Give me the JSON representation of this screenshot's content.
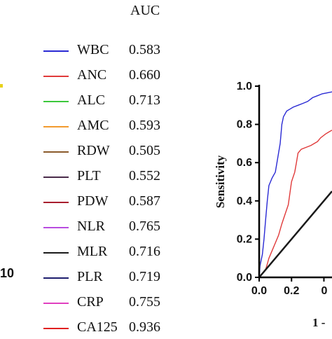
{
  "colors": {
    "WBC": "#2a2ad4",
    "ANC": "#e03a3a",
    "ALC": "#3cc83c",
    "AMC": "#f29a2e",
    "RDW": "#8b5a2b",
    "PLT": "#4a2a4a",
    "PDW": "#a81e2e",
    "NLR": "#b84ce0",
    "MLR": "#1a1a1a",
    "PLR": "#1e1e6e",
    "CRP": "#e040c0",
    "CA125": "#e02020"
  },
  "left_fragment": {
    "text": "10"
  },
  "chart_data": {
    "type": "line",
    "title": "",
    "legend_title": "AUC",
    "legend_placement": "left",
    "legend": [
      {
        "name": "WBC",
        "auc": "0.583"
      },
      {
        "name": "ANC",
        "auc": "0.660"
      },
      {
        "name": "ALC",
        "auc": "0.713"
      },
      {
        "name": "AMC",
        "auc": "0.593"
      },
      {
        "name": "RDW",
        "auc": "0.505"
      },
      {
        "name": "PLT",
        "auc": "0.552"
      },
      {
        "name": "PDW",
        "auc": "0.587"
      },
      {
        "name": "NLR",
        "auc": "0.765"
      },
      {
        "name": "MLR",
        "auc": "0.716"
      },
      {
        "name": "PLR",
        "auc": "0.719"
      },
      {
        "name": "CRP",
        "auc": "0.755"
      },
      {
        "name": "CA125",
        "auc": "0.936"
      }
    ],
    "xlabel": "1 -",
    "ylabel": "Sensitivity",
    "xlim": [
      0,
      0.45
    ],
    "ylim": [
      0,
      1.0
    ],
    "x_ticks": [
      "0.0",
      "0.2",
      "0"
    ],
    "y_ticks": [
      "0.0",
      "0.2",
      "0.4",
      "0.6",
      "0.8",
      "1.0"
    ],
    "grid": false,
    "series": [
      {
        "name": "CA125",
        "color_key": "WBC",
        "points": [
          [
            0,
            0
          ],
          [
            0.005,
            0.06
          ],
          [
            0.02,
            0.12
          ],
          [
            0.03,
            0.2
          ],
          [
            0.04,
            0.3
          ],
          [
            0.05,
            0.4
          ],
          [
            0.06,
            0.48
          ],
          [
            0.08,
            0.52
          ],
          [
            0.1,
            0.55
          ],
          [
            0.11,
            0.6
          ],
          [
            0.12,
            0.65
          ],
          [
            0.13,
            0.7
          ],
          [
            0.135,
            0.75
          ],
          [
            0.14,
            0.8
          ],
          [
            0.15,
            0.84
          ],
          [
            0.17,
            0.87
          ],
          [
            0.19,
            0.88
          ],
          [
            0.21,
            0.89
          ],
          [
            0.24,
            0.9
          ],
          [
            0.27,
            0.91
          ],
          [
            0.3,
            0.92
          ],
          [
            0.33,
            0.94
          ],
          [
            0.36,
            0.95
          ],
          [
            0.39,
            0.96
          ],
          [
            0.42,
            0.965
          ],
          [
            0.45,
            0.97
          ]
        ]
      },
      {
        "name": "NLR",
        "color_key": "ANC",
        "points": [
          [
            0,
            0
          ],
          [
            0.02,
            0.02
          ],
          [
            0.04,
            0.04
          ],
          [
            0.05,
            0.07
          ],
          [
            0.06,
            0.1
          ],
          [
            0.08,
            0.14
          ],
          [
            0.1,
            0.18
          ],
          [
            0.12,
            0.22
          ],
          [
            0.14,
            0.28
          ],
          [
            0.16,
            0.33
          ],
          [
            0.18,
            0.38
          ],
          [
            0.19,
            0.44
          ],
          [
            0.2,
            0.5
          ],
          [
            0.22,
            0.55
          ],
          [
            0.23,
            0.6
          ],
          [
            0.24,
            0.65
          ],
          [
            0.26,
            0.67
          ],
          [
            0.29,
            0.68
          ],
          [
            0.32,
            0.69
          ],
          [
            0.34,
            0.7
          ],
          [
            0.36,
            0.71
          ],
          [
            0.38,
            0.73
          ],
          [
            0.41,
            0.75
          ],
          [
            0.43,
            0.76
          ],
          [
            0.45,
            0.77
          ]
        ]
      },
      {
        "name": "reference",
        "color_key": "MLR",
        "points": [
          [
            0,
            0
          ],
          [
            0.45,
            0.45
          ]
        ]
      }
    ]
  }
}
